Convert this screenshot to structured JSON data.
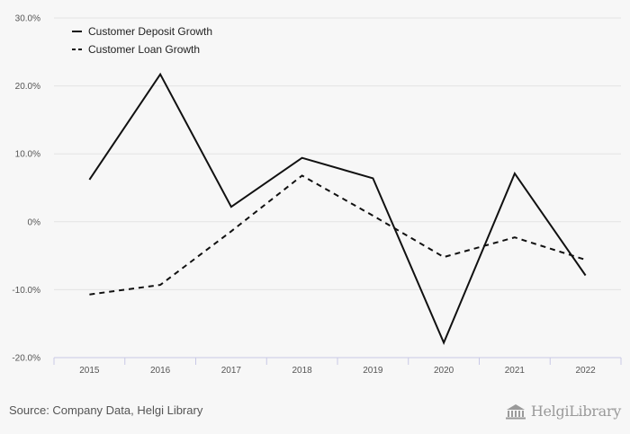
{
  "chart_data": {
    "type": "line",
    "title": "",
    "xlabel": "",
    "ylabel": "",
    "categories": [
      "2015",
      "2016",
      "2017",
      "2018",
      "2019",
      "2020",
      "2021",
      "2022"
    ],
    "ylim": [
      -20,
      30
    ],
    "y_ticks": [
      {
        "value": -20,
        "label": "-20.0%"
      },
      {
        "value": -10,
        "label": "-10.0%"
      },
      {
        "value": 0,
        "label": "0%"
      },
      {
        "value": 10,
        "label": "10.0%"
      },
      {
        "value": 20,
        "label": "20.0%"
      },
      {
        "value": 30,
        "label": "30.0%"
      }
    ],
    "grid": true,
    "legend_position": "top-left",
    "series": [
      {
        "name": "Customer Deposit Growth",
        "line_style": "solid",
        "color": "#111111",
        "values": [
          6.2,
          21.7,
          2.2,
          9.4,
          6.4,
          -17.8,
          7.1,
          -7.9
        ]
      },
      {
        "name": "Customer Loan Growth",
        "line_style": "dashed",
        "color": "#111111",
        "values": [
          -10.7,
          -9.3,
          -1.4,
          6.8,
          0.9,
          -5.2,
          -2.3,
          -5.6
        ]
      }
    ]
  },
  "footer": {
    "source": "Source: Company Data, Helgi Library",
    "brand": "HelgiLibrary",
    "brand_icon": "library-building-icon"
  },
  "colors": {
    "background": "#f7f7f7",
    "gridline": "#e3e3e3",
    "axis_line": "#c9c9e6",
    "line": "#111111",
    "tick_text": "#555555",
    "brand": "#9a9a9a"
  }
}
